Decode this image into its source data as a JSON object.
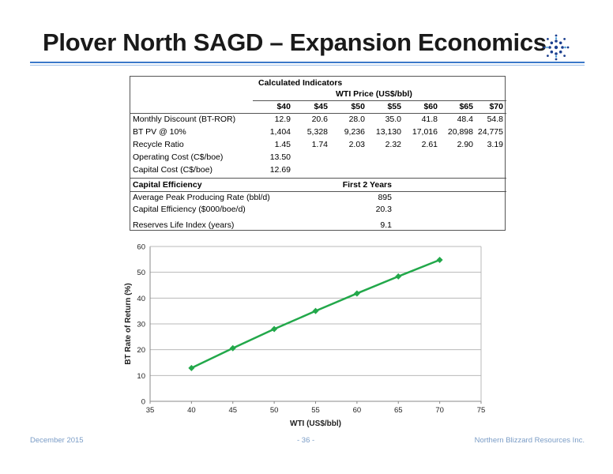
{
  "header": {
    "title": "Plover North SAGD – Expansion Economics",
    "logo_icon": "snowflake-logo-icon"
  },
  "table": {
    "caption": "Calculated Indicators",
    "price_header": "WTI Price (US$/bbl)",
    "price_columns": [
      "$40",
      "$45",
      "$50",
      "$55",
      "$60",
      "$65",
      "$70"
    ],
    "rows": [
      {
        "label": "Monthly Discount (BT-ROR)",
        "values": [
          "12.9",
          "20.6",
          "28.0",
          "35.0",
          "41.8",
          "48.4",
          "54.8"
        ]
      },
      {
        "label": "BT PV @ 10%",
        "values": [
          "1,404",
          "5,328",
          "9,236",
          "13,130",
          "17,016",
          "20,898",
          "24,775"
        ]
      },
      {
        "label": "Recycle Ratio",
        "values": [
          "1.45",
          "1.74",
          "2.03",
          "2.32",
          "2.61",
          "2.90",
          "3.19"
        ]
      },
      {
        "label": "Operating Cost (C$/boe)",
        "values": [
          "13.50"
        ]
      },
      {
        "label": "Capital Cost (C$/boe)",
        "values": [
          "12.69"
        ]
      }
    ],
    "capital_efficiency": {
      "heading": "Capital Efficiency",
      "col_header": "First 2 Years",
      "rows": [
        {
          "label": "Average Peak Producing Rate (bbl/d)",
          "value": "895"
        },
        {
          "label": "Capital Efficiency ($000/boe/d)",
          "value": "20.3"
        }
      ]
    },
    "reserves": {
      "label": "Reserves Life Index (years)",
      "value": "9.1"
    }
  },
  "chart_data": {
    "type": "line",
    "x": [
      40,
      45,
      50,
      55,
      60,
      65,
      70
    ],
    "series": [
      {
        "values": [
          12.9,
          20.6,
          28.0,
          35.0,
          41.8,
          48.4,
          54.8
        ],
        "color": "#22a84a",
        "marker": "diamond"
      }
    ],
    "xlabel": "WTI (US$/bbl)",
    "ylabel": "BT Rate of Return (%)",
    "xlim": [
      35,
      75
    ],
    "ylim": [
      0,
      60
    ],
    "xticks": [
      "35",
      "40",
      "45",
      "50",
      "55",
      "60",
      "65",
      "70",
      "75"
    ],
    "yticks": [
      "0",
      "10",
      "20",
      "30",
      "40",
      "50",
      "60"
    ],
    "grid": "horizontal"
  },
  "footer": {
    "date": "December 2015",
    "page": "- 36 -",
    "company": "Northern Blizzard Resources Inc."
  }
}
